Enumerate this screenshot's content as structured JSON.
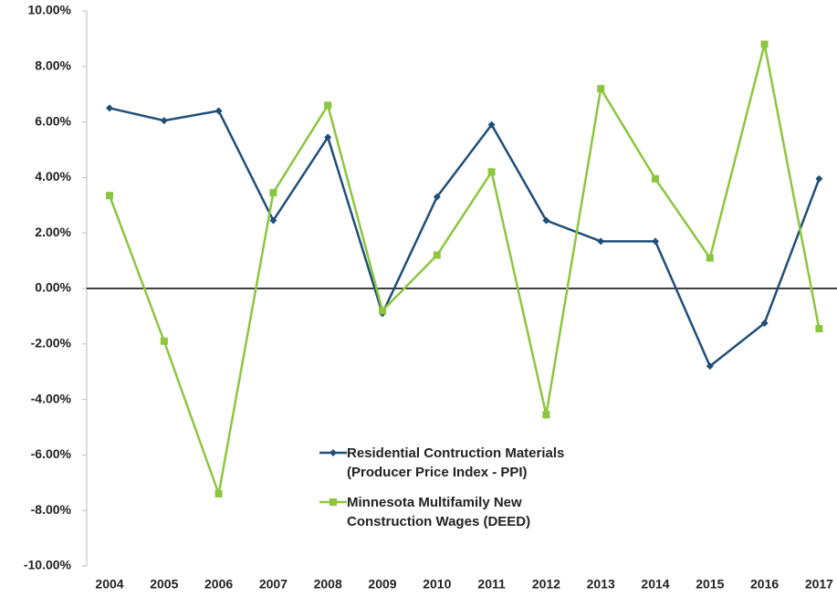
{
  "chart_data": {
    "type": "line",
    "categories": [
      "2004",
      "2005",
      "2006",
      "2007",
      "2008",
      "2009",
      "2010",
      "2011",
      "2012",
      "2013",
      "2014",
      "2015",
      "2016",
      "2017"
    ],
    "series": [
      {
        "name": "Residential Contruction Materials\n(Producer Price Index - PPI)",
        "color": "#1f4e79",
        "marker": "diamond",
        "values": [
          6.5,
          6.05,
          6.4,
          2.45,
          5.45,
          -0.9,
          3.3,
          5.9,
          2.45,
          1.7,
          1.7,
          -2.8,
          -1.25,
          3.95
        ]
      },
      {
        "name": "Minnesota Multifamily New\nConstruction Wages (DEED)",
        "color": "#8cc63e",
        "marker": "square",
        "values": [
          3.35,
          -1.9,
          -7.4,
          3.45,
          6.6,
          -0.8,
          1.2,
          4.2,
          -4.55,
          7.2,
          3.95,
          1.1,
          8.8,
          -1.45
        ]
      }
    ],
    "ylim": [
      -10,
      10
    ],
    "yticks": [
      {
        "value": -10,
        "label": "-10.00%"
      },
      {
        "value": -8,
        "label": "-8.00%"
      },
      {
        "value": -6,
        "label": "-6.00%"
      },
      {
        "value": -4,
        "label": "-4.00%"
      },
      {
        "value": -2,
        "label": "-2.00%"
      },
      {
        "value": 0,
        "label": "0.00%"
      },
      {
        "value": 2,
        "label": "2.00%"
      },
      {
        "value": 4,
        "label": "4.00%"
      },
      {
        "value": 6,
        "label": "6.00%"
      },
      {
        "value": 8,
        "label": "8.00%"
      },
      {
        "value": 10,
        "label": "10.00%"
      }
    ],
    "grid": false
  }
}
